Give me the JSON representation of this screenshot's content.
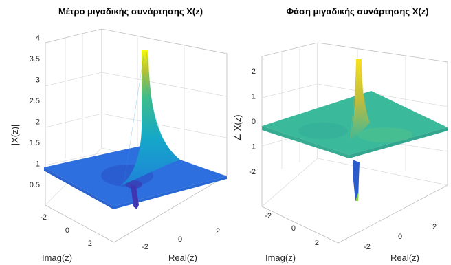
{
  "colors": {
    "colormap": "parula",
    "low": "#3e26a8",
    "mid": "#2cb5a7",
    "high": "#f9fb0e",
    "plane_magnitude": "#2e6fe0",
    "plane_phase": "#3ab99b"
  },
  "chart_data": [
    {
      "type": "surface",
      "title": "Μέτρο μιγαδικής συνάρτησης X(z)",
      "xlabel": "Real(z)",
      "ylabel": "Imag(z)",
      "zlabel": "|X(z)|",
      "xlim": [
        -3,
        3
      ],
      "ylim": [
        -3,
        3
      ],
      "zlim": [
        0,
        4
      ],
      "x_ticks": [
        "-2",
        "0",
        "2"
      ],
      "y_ticks": [
        "-2",
        "0",
        "2"
      ],
      "z_ticks": [
        "0.5",
        "1",
        "1.5",
        "2",
        "2.5",
        "3",
        "3.5",
        "4"
      ],
      "grid": true,
      "features": {
        "plane_level": 0.9,
        "peak_height": 3.9,
        "peak_location": [
          0.5,
          1.5
        ],
        "zero_dip_location": [
          -0.5,
          -1.0
        ]
      }
    },
    {
      "type": "surface",
      "title": "Φάση μιγαδικής συνάρτησης X(z)",
      "xlabel": "Real(z)",
      "ylabel": "Imag(z)",
      "zlabel": "∠ X(z)",
      "xlim": [
        -3,
        3
      ],
      "ylim": [
        -3,
        3
      ],
      "zlim": [
        -3,
        3
      ],
      "x_ticks": [
        "-2",
        "0",
        "2"
      ],
      "y_ticks": [
        "-2",
        "0",
        "2"
      ],
      "z_ticks": [
        "-2",
        "-1",
        "0",
        "1",
        "2"
      ],
      "grid": true,
      "features": {
        "plane_level": 0,
        "peak_height": 2.6,
        "trough_depth": -3.0,
        "peak_location": [
          0.5,
          1.5
        ]
      }
    }
  ]
}
